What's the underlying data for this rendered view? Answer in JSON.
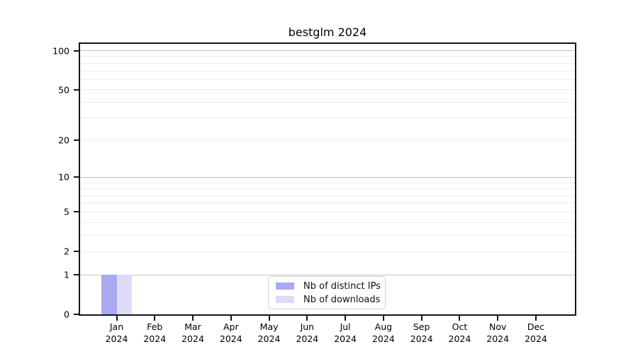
{
  "chart_data": {
    "type": "bar",
    "title": "bestglm 2024",
    "categories": [
      "Jan",
      "Feb",
      "Mar",
      "Apr",
      "May",
      "Jun",
      "Jul",
      "Aug",
      "Sep",
      "Oct",
      "Nov",
      "Dec"
    ],
    "year": "2024",
    "series": [
      {
        "name": "Nb of distinct IPs",
        "color": "#a9a9f2",
        "values": [
          1,
          0,
          0,
          0,
          0,
          0,
          0,
          0,
          0,
          0,
          0,
          0
        ]
      },
      {
        "name": "Nb of downloads",
        "color": "#dcdcf8",
        "values": [
          1,
          0,
          0,
          0,
          0,
          0,
          0,
          0,
          0,
          0,
          0,
          0
        ]
      }
    ],
    "xlabel": "",
    "ylabel": "",
    "yticks": [
      0,
      1,
      2,
      5,
      10,
      20,
      50,
      100
    ],
    "minor_yticks": [
      3,
      4,
      6,
      7,
      8,
      9,
      30,
      40,
      60,
      70,
      80,
      90
    ],
    "scale": "log1p",
    "ylim": [
      0,
      112.7
    ],
    "grid": true,
    "legend_position": "bottom-center"
  },
  "colors": {
    "grid_major": "#c3c3c3",
    "grid_minor": "#ececec",
    "spine": "#151515",
    "background": "#ffffff",
    "legend_border": "#cfcfcf",
    "text": "#000000"
  }
}
